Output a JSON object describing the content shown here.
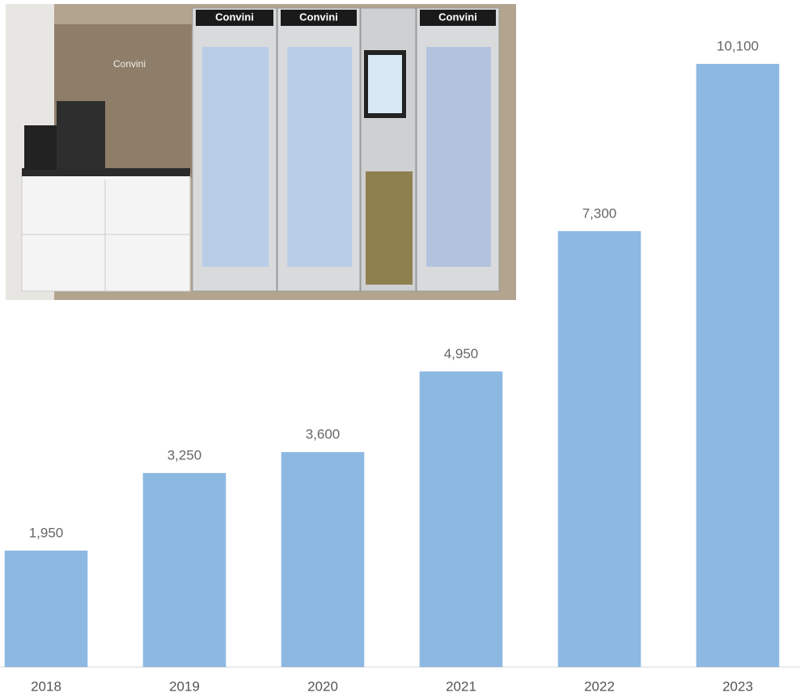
{
  "chart_data": {
    "type": "bar",
    "categories": [
      "2018",
      "2019",
      "2020",
      "2021",
      "2022",
      "2023"
    ],
    "values": [
      1950,
      3250,
      3600,
      4950,
      7300,
      10100
    ],
    "value_labels": [
      "1,950",
      "3,250",
      "3,600",
      "4,950",
      "7,300",
      "10,100"
    ],
    "color": "#8db8e2",
    "ylim": [
      0,
      11000
    ]
  },
  "photo": {
    "signs": [
      "Convini",
      "Convini",
      "Convini",
      "Convini"
    ]
  }
}
